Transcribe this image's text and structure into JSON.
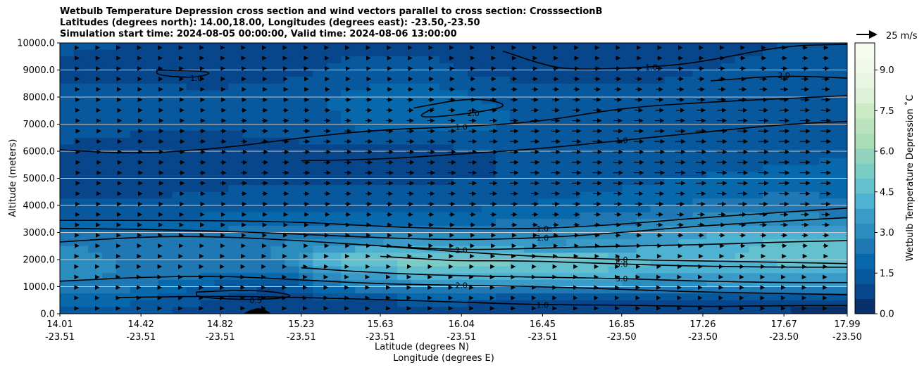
{
  "chart_data": {
    "type": "contour-cross-section",
    "title": [
      "Wetbulb Temperature Depression cross section and wind vectors parallel to cross section: CrosssectionB",
      "Latitudes (degrees north): 14.00,18.00, Longitudes (degrees east): -23.50,-23.50",
      "Simulation start time: 2024-08-05 00:00:00, Valid time: 2024-08-06 13:00:00"
    ],
    "ylabel": "Altitude (meters)",
    "xlabel_lines": [
      "Latitude (degrees N)",
      "Longitude (degrees E)"
    ],
    "ylim": [
      0,
      10000
    ],
    "y_ticks": [
      "0.0",
      "1000.0",
      "2000.0",
      "3000.0",
      "4000.0",
      "5000.0",
      "6000.0",
      "7000.0",
      "8000.0",
      "9000.0",
      "10000.0"
    ],
    "x_ticks": [
      {
        "lat": "14.01",
        "lon": "-23.51"
      },
      {
        "lat": "14.42",
        "lon": "-23.51"
      },
      {
        "lat": "14.82",
        "lon": "-23.51"
      },
      {
        "lat": "15.23",
        "lon": "-23.51"
      },
      {
        "lat": "15.63",
        "lon": "-23.51"
      },
      {
        "lat": "16.04",
        "lon": "-23.51"
      },
      {
        "lat": "16.45",
        "lon": "-23.51"
      },
      {
        "lat": "16.85",
        "lon": "-23.50"
      },
      {
        "lat": "17.26",
        "lon": "-23.50"
      },
      {
        "lat": "17.67",
        "lon": "-23.50"
      },
      {
        "lat": "17.99",
        "lon": "-23.50"
      }
    ],
    "colorbar": {
      "label": "Wetbulb Temperature Depression ˚C",
      "range": [
        0,
        10
      ],
      "ticks": [
        "0.0",
        "1.5",
        "3.0",
        "4.5",
        "6.0",
        "7.5",
        "9.0"
      ],
      "colors": [
        "#08306b",
        "#08468c",
        "#08589e",
        "#0868ac",
        "#1f78b4",
        "#2b8cbe",
        "#3a9bc9",
        "#4eb3d3",
        "#63c0cc",
        "#7bccc4",
        "#93d4bf",
        "#a8ddb5",
        "#bbe4be",
        "#ccebc5",
        "#dcf1d5",
        "#e8f6e1",
        "#f1f9ea",
        "#f7fcf0"
      ]
    },
    "wind_key": {
      "label": "25 m/s"
    },
    "field_bands": [
      {
        "alt": 0,
        "values": [
          1.4,
          1.2,
          0.9,
          0.6,
          0.5,
          0.6,
          0.7,
          0.6,
          0.6,
          0.5,
          0.5,
          0.4
        ]
      },
      {
        "alt": 500,
        "values": [
          2.0,
          1.8,
          1.2,
          0.8,
          1.0,
          1.4,
          1.2,
          0.6,
          0.6,
          0.8,
          0.8,
          0.8
        ]
      },
      {
        "alt": 1000,
        "values": [
          2.6,
          2.4,
          1.6,
          1.0,
          2.5,
          3.0,
          3.2,
          3.2,
          3.0,
          3.1,
          3.2,
          3.4
        ]
      },
      {
        "alt": 1500,
        "values": [
          3.2,
          2.6,
          2.4,
          2.0,
          3.8,
          4.4,
          4.6,
          4.6,
          4.2,
          4.0,
          4.0,
          4.0
        ]
      },
      {
        "alt": 2000,
        "values": [
          3.2,
          2.6,
          2.6,
          2.8,
          5.0,
          5.4,
          5.2,
          5.0,
          4.6,
          4.4,
          4.6,
          4.6
        ]
      },
      {
        "alt": 2500,
        "values": [
          2.8,
          2.6,
          2.6,
          2.8,
          3.4,
          3.8,
          3.6,
          3.4,
          3.6,
          4.2,
          4.6,
          4.6
        ]
      },
      {
        "alt": 3000,
        "values": [
          2.4,
          2.3,
          2.3,
          2.4,
          2.5,
          2.6,
          2.8,
          3.0,
          3.2,
          3.8,
          4.2,
          4.0
        ]
      },
      {
        "alt": 3500,
        "values": [
          1.6,
          1.6,
          1.8,
          2.0,
          2.0,
          1.9,
          2.0,
          2.2,
          2.6,
          3.0,
          3.0,
          2.8
        ]
      },
      {
        "alt": 4000,
        "values": [
          1.2,
          1.2,
          1.3,
          1.5,
          1.5,
          1.4,
          1.6,
          1.8,
          2.0,
          2.4,
          2.5,
          2.4
        ]
      },
      {
        "alt": 5000,
        "values": [
          0.9,
          0.8,
          0.9,
          1.0,
          1.0,
          1.0,
          1.1,
          1.3,
          1.5,
          1.7,
          1.8,
          1.9
        ]
      },
      {
        "alt": 6000,
        "values": [
          1.0,
          0.8,
          0.8,
          0.9,
          0.9,
          0.9,
          1.1,
          1.2,
          1.3,
          1.4,
          1.5,
          1.6
        ]
      },
      {
        "alt": 7000,
        "values": [
          1.4,
          1.3,
          1.2,
          1.3,
          1.7,
          2.1,
          1.8,
          1.5,
          1.4,
          1.3,
          1.3,
          1.4
        ]
      },
      {
        "alt": 8000,
        "values": [
          1.2,
          1.3,
          1.2,
          1.3,
          1.8,
          2.2,
          1.6,
          1.4,
          1.3,
          1.3,
          1.5,
          1.7
        ]
      },
      {
        "alt": 9000,
        "values": [
          1.0,
          1.0,
          0.9,
          0.9,
          1.2,
          1.3,
          0.9,
          0.8,
          0.9,
          1.1,
          1.2,
          1.3
        ]
      },
      {
        "alt": 10000,
        "values": [
          1.2,
          1.1,
          0.9,
          0.8,
          1.0,
          1.0,
          0.8,
          0.7,
          0.9,
          1.0,
          1.1,
          1.2
        ]
      }
    ],
    "contours": [
      {
        "level": "1.0",
        "points": [
          [
            14.01,
            3450
          ],
          [
            14.6,
            3450
          ],
          [
            15.2,
            3400
          ],
          [
            15.63,
            3220
          ],
          [
            16.04,
            3130
          ],
          [
            16.45,
            3140
          ],
          [
            16.85,
            3300
          ],
          [
            17.26,
            3550
          ],
          [
            17.67,
            3750
          ],
          [
            17.99,
            3900
          ]
        ]
      },
      {
        "level": "1.0",
        "points": [
          [
            14.01,
            3150
          ],
          [
            14.6,
            3100
          ],
          [
            15.2,
            2950
          ],
          [
            15.63,
            2800
          ],
          [
            16.04,
            2720
          ],
          [
            16.45,
            2800
          ],
          [
            16.85,
            3000
          ],
          [
            17.26,
            3250
          ],
          [
            17.67,
            3420
          ],
          [
            17.99,
            3550
          ]
        ]
      },
      {
        "level": "2.0",
        "points": [
          [
            14.01,
            2650
          ],
          [
            14.45,
            2850
          ],
          [
            14.82,
            2850
          ],
          [
            15.23,
            2700
          ],
          [
            15.63,
            2500
          ],
          [
            16.04,
            2350
          ],
          [
            16.45,
            2420
          ],
          [
            16.85,
            2500
          ],
          [
            17.26,
            2550
          ],
          [
            17.67,
            2650
          ],
          [
            17.99,
            2700
          ]
        ]
      },
      {
        "level": "4.0",
        "points": [
          [
            15.63,
            2500
          ],
          [
            16.04,
            2280
          ],
          [
            16.45,
            2100
          ],
          [
            16.85,
            2000
          ],
          [
            17.26,
            1950
          ],
          [
            17.67,
            1900
          ],
          [
            17.99,
            1850
          ]
        ]
      },
      {
        "level": "5.0",
        "points": [
          [
            15.63,
            2120
          ],
          [
            15.9,
            2000
          ],
          [
            16.04,
            1950
          ],
          [
            16.35,
            1960
          ],
          [
            16.85,
            1830
          ],
          [
            17.26,
            1750
          ],
          [
            17.67,
            1720
          ],
          [
            17.99,
            1720
          ]
        ]
      },
      {
        "level": "3.0",
        "points": [
          [
            15.23,
            1700
          ],
          [
            15.63,
            1500
          ],
          [
            16.04,
            1400
          ],
          [
            16.45,
            1350
          ],
          [
            16.85,
            1300
          ],
          [
            17.26,
            1200
          ],
          [
            17.67,
            1150
          ],
          [
            17.99,
            1150
          ]
        ]
      },
      {
        "level": "2.0",
        "points": [
          [
            14.01,
            1200
          ],
          [
            14.42,
            1350
          ],
          [
            14.82,
            1400
          ],
          [
            15.23,
            1250
          ],
          [
            15.63,
            1100
          ],
          [
            16.04,
            1050
          ],
          [
            16.45,
            1000
          ],
          [
            16.85,
            900
          ],
          [
            17.26,
            800
          ],
          [
            17.67,
            750
          ],
          [
            17.99,
            700
          ]
        ]
      },
      {
        "level": "1.0",
        "points": [
          [
            14.3,
            600
          ],
          [
            14.82,
            650
          ],
          [
            15.23,
            600
          ],
          [
            15.63,
            520
          ],
          [
            16.04,
            430
          ],
          [
            16.45,
            330
          ],
          [
            16.85,
            320
          ],
          [
            17.26,
            260
          ],
          [
            17.67,
            300
          ],
          [
            17.99,
            300
          ]
        ]
      },
      {
        "level": "1.0",
        "points": [
          [
            15.23,
            5650
          ],
          [
            15.63,
            5700
          ],
          [
            16.04,
            5900
          ],
          [
            16.45,
            6100
          ],
          [
            16.85,
            6400
          ],
          [
            17.26,
            6700
          ],
          [
            17.67,
            7000
          ],
          [
            17.99,
            7100
          ]
        ]
      },
      {
        "level": "1.0",
        "points": [
          [
            14.01,
            6050
          ],
          [
            14.4,
            5900
          ],
          [
            14.82,
            6100
          ],
          [
            15.23,
            6500
          ],
          [
            15.63,
            6800
          ],
          [
            16.04,
            6900
          ],
          [
            16.45,
            7100
          ],
          [
            16.85,
            7600
          ],
          [
            17.26,
            7800
          ],
          [
            17.67,
            7950
          ],
          [
            17.99,
            8050
          ]
        ]
      },
      {
        "level": "2.0",
        "points": [
          [
            15.8,
            7600
          ],
          [
            16.1,
            8000
          ],
          [
            16.3,
            7700
          ],
          [
            16.1,
            7400
          ],
          [
            15.8,
            7200
          ],
          [
            15.9,
            7600
          ]
        ]
      },
      {
        "level": "1.0",
        "points": [
          [
            14.5,
            9000
          ],
          [
            14.8,
            8950
          ],
          [
            14.7,
            8700
          ],
          [
            14.5,
            8800
          ],
          [
            14.5,
            9000
          ]
        ]
      },
      {
        "level": "1.0",
        "points": [
          [
            16.25,
            9700
          ],
          [
            16.45,
            9200
          ],
          [
            16.6,
            9000
          ],
          [
            17.0,
            9100
          ],
          [
            17.26,
            9300
          ],
          [
            17.67,
            9900
          ],
          [
            17.99,
            9950
          ]
        ]
      },
      {
        "level": "2.0",
        "points": [
          [
            17.3,
            8600
          ],
          [
            17.67,
            8800
          ],
          [
            17.99,
            8700
          ]
        ]
      },
      {
        "level": "0.5",
        "points": [
          [
            14.7,
            800
          ],
          [
            15.0,
            900
          ],
          [
            15.23,
            650
          ],
          [
            15.0,
            500
          ],
          [
            14.7,
            600
          ],
          [
            14.7,
            800
          ]
        ]
      }
    ],
    "contour_labels": [
      "1.0",
      "1.0",
      "2.0",
      "4.0",
      "5.0",
      "6.0",
      "3.0",
      "2.0",
      "1.0",
      "1.0",
      "1.0",
      "2.0",
      "1.0",
      "1.0",
      "2.0",
      "1.0",
      "2.0",
      "3.0",
      "3.0",
      "1.0",
      "1.0",
      "1.0",
      "1.0",
      "1.0",
      "1.0",
      "1.0",
      "1.0",
      "2.0",
      "2.0",
      "2.0",
      "1.0",
      "1.0",
      "3.0",
      "4.0",
      "1.0",
      "1.0",
      "5.0",
      "1.0",
      "1.0",
      "1.0",
      "1.0",
      "1.0",
      "2.0",
      "1.0",
      "1.0",
      "1.0"
    ],
    "wind_arrows_note": "Arrows point east (parallel to section), longer toward mid-levels on the northern side"
  }
}
